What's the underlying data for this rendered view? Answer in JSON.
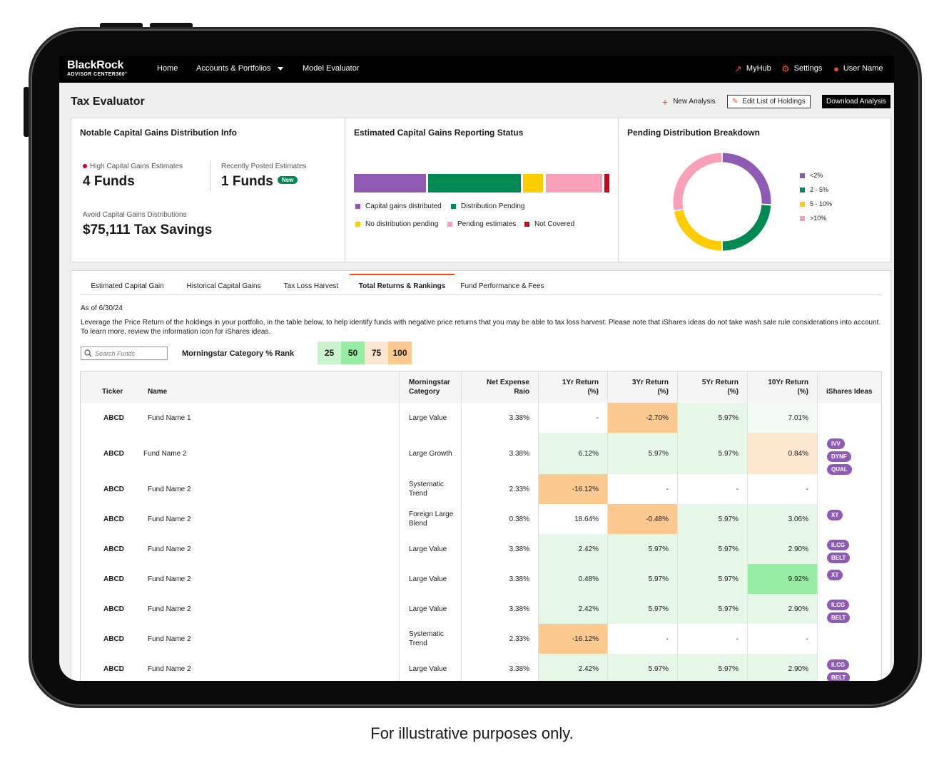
{
  "nav": {
    "logo_main": "BlackRock",
    "logo_sub": "ADVISOR CENTER360°",
    "home": "Home",
    "accounts": "Accounts & Portfolios",
    "model": "Model Evaluator",
    "myhub": "MyHub",
    "settings": "Settings",
    "user": "User Name"
  },
  "header": {
    "title": "Tax Evaluator",
    "new_analysis": "New Analysis",
    "edit_holdings": "Edit List of Holdings",
    "download": "Download Analysis"
  },
  "card1": {
    "title": "Notable Capital Gains Distribution Info",
    "high_label": "High Capital Gains Estimates",
    "high_value": "4 Funds",
    "recent_label": "Recently Posted Estimates",
    "recent_value": "1 Funds",
    "new_badge": "New",
    "avoid_label": "Avoid Capital Gains Distributions",
    "avoid_value": "$75,111 Tax Savings"
  },
  "card2": {
    "title": "Estimated Capital Gains Reporting Status",
    "segments": [
      {
        "label": "Capital gains distributed",
        "value": 28.5,
        "color": "#8e5ab3"
      },
      {
        "label": "Distribution Pending",
        "value": 37,
        "color": "#008952"
      },
      {
        "label": "No distribution pending",
        "value": 8,
        "color": "#ffcc00"
      },
      {
        "label": "Pending estimates",
        "value": 22.5,
        "color": "#f9a0b9"
      },
      {
        "label": "Not Covered",
        "value": 2,
        "color": "#d0021b"
      }
    ]
  },
  "card3": {
    "title": "Pending Distribution Breakdown",
    "slices": [
      {
        "label": "<2%",
        "value": 26,
        "color": "#8e5ab3"
      },
      {
        "label": "2 - 5%",
        "value": 24,
        "color": "#008952"
      },
      {
        "label": "5 - 10%",
        "value": 22,
        "color": "#ffcc00"
      },
      {
        "label": ">10%",
        "value": 28,
        "color": "#f9a0b9"
      }
    ]
  },
  "tabs": [
    "Estimated Capital Gain",
    "Historical Capital Gains",
    "Tax Loss Harvest",
    "Total Returns & Rankings",
    "Fund Performance & Fees"
  ],
  "active_tab": "Total Returns & Rankings",
  "asof": "As of 6/30/24",
  "description": "Leverage the Price Return of the holdings in your portfolio, in the table below, to help identify funds with negative price returns that you may be able to tax loss harvest. Please note that iShares ideas do not take wash sale rule considerations into account. To learn more, review the information icon for iShares ideas.",
  "search": {
    "placeholder": "Search Funds"
  },
  "rank": {
    "label": "Morningstar Category % Rank",
    "boxes": [
      {
        "label": "25",
        "color": "#c9f2cf"
      },
      {
        "label": "50",
        "color": "#98eda4"
      },
      {
        "label": "75",
        "color": "#fde6cf"
      },
      {
        "label": "100",
        "color": "#fcc991"
      }
    ]
  },
  "table": {
    "headers": {
      "ticker": "Ticker",
      "name": "Name",
      "category": "Morningstar Category",
      "expense": "Net Expense Raio",
      "r1": "1Yr Return (%)",
      "r3": "3Yr Return (%)",
      "r5": "5Yr Return (%)",
      "r10": "10Yr Return (%)",
      "ideas": "iShares Ideas"
    },
    "rows": [
      {
        "ticker": "ABCD",
        "name": "Fund Name 1",
        "category": "Large Value",
        "expense": "3.38%",
        "r1": "-",
        "r3": "-2.70%",
        "r5": "5.97%",
        "r10": "7.01%",
        "ideas": []
      },
      {
        "ticker": "ABCD",
        "name": "Fund Name 2",
        "category": "Large Growth",
        "expense": "3.38%",
        "r1": "6.12%",
        "r3": "5.97%",
        "r5": "5.97%",
        "r10": "0.84%",
        "ideas": [
          "IVV",
          "DYNF",
          "QUAL"
        ]
      },
      {
        "ticker": "ABCD",
        "name": "Fund Name 2",
        "category": "Systematic Trend",
        "expense": "2.33%",
        "r1": "-16.12%",
        "r3": "-",
        "r5": "-",
        "r10": "-",
        "ideas": []
      },
      {
        "ticker": "ABCD",
        "name": "Fund Name 2",
        "category": "Foreign Large Blend",
        "expense": "0.38%",
        "r1": "18.64%",
        "r3": "-0.48%",
        "r5": "5.97%",
        "r10": "3.06%",
        "ideas": [
          "XT"
        ]
      },
      {
        "ticker": "ABCD",
        "name": "Fund Name 2",
        "category": "Large Value",
        "expense": "3.38%",
        "r1": "2.42%",
        "r3": "5.97%",
        "r5": "5.97%",
        "r10": "2.90%",
        "ideas": [
          "ILCG",
          "BELT"
        ]
      },
      {
        "ticker": "ABCD",
        "name": "Fund Name 2",
        "category": "Large Value",
        "expense": "3.38%",
        "r1": "0.48%",
        "r3": "5.97%",
        "r5": "5.97%",
        "r10": "9.92%",
        "ideas": [
          "XT"
        ]
      },
      {
        "ticker": "ABCD",
        "name": "Fund Name 2",
        "category": "Large Value",
        "expense": "3.38%",
        "r1": "2.42%",
        "r3": "5.97%",
        "r5": "5.97%",
        "r10": "2.90%",
        "ideas": [
          "ILCG",
          "BELT"
        ]
      },
      {
        "ticker": "ABCD",
        "name": "Fund Name 2",
        "category": "Systematic Trend",
        "expense": "2.33%",
        "r1": "-16.12%",
        "r3": "-",
        "r5": "-",
        "r10": "-",
        "ideas": []
      },
      {
        "ticker": "ABCD",
        "name": "Fund Name 2",
        "category": "Large Value",
        "expense": "3.38%",
        "r1": "2.42%",
        "r3": "5.97%",
        "r5": "5.97%",
        "r10": "2.90%",
        "ideas": [
          "ILCG",
          "BELT"
        ]
      }
    ],
    "cell_colors": [
      {
        "r1": "#ffffff",
        "r3": "#fcc991",
        "r5": "#e6f7e8",
        "r10": "#f3fbf4"
      },
      {
        "r1": "#e6f7e8",
        "r3": "#e6f7e8",
        "r5": "#e6f7e8",
        "r10": "#fde6cf"
      },
      {
        "r1": "#fcc991",
        "r3": "#ffffff",
        "r5": "#ffffff",
        "r10": "#ffffff"
      },
      {
        "r1": "#ffffff",
        "r3": "#fcc991",
        "r5": "#e6f7e8",
        "r10": "#e6f7e8"
      },
      {
        "r1": "#e6f7e8",
        "r3": "#e6f7e8",
        "r5": "#e6f7e8",
        "r10": "#e6f7e8"
      },
      {
        "r1": "#e6f7e8",
        "r3": "#e6f7e8",
        "r5": "#e6f7e8",
        "r10": "#98eda4"
      },
      {
        "r1": "#e6f7e8",
        "r3": "#e6f7e8",
        "r5": "#e6f7e8",
        "r10": "#e6f7e8"
      },
      {
        "r1": "#fcc991",
        "r3": "#ffffff",
        "r5": "#ffffff",
        "r10": "#ffffff"
      },
      {
        "r1": "#e6f7e8",
        "r3": "#e6f7e8",
        "r5": "#e6f7e8",
        "r10": "#e6f7e8"
      }
    ]
  },
  "caption": "For illustrative purposes only."
}
